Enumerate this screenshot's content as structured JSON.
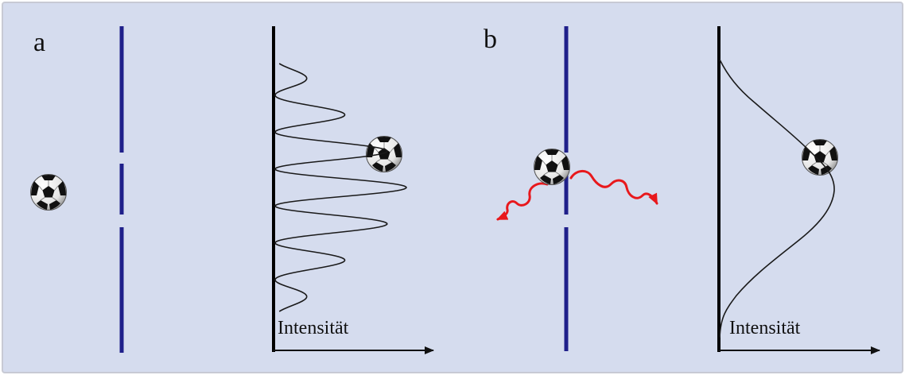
{
  "figure": {
    "background_color": "#d5dcee",
    "border_color": "#c8cad4",
    "barrier_color": "#1f1f8a",
    "curve_color": "#1a1a1a",
    "photon_color": "#e8181c",
    "panels": [
      {
        "label": "a",
        "axis_label": "Intensität",
        "pattern": "interference fringes"
      },
      {
        "label": "b",
        "axis_label": "Intensität",
        "pattern": "single broad peak"
      }
    ],
    "icons": [
      "soccer-ball-icon",
      "arrow-right-icon",
      "wavy-red-arrow-icon"
    ]
  }
}
